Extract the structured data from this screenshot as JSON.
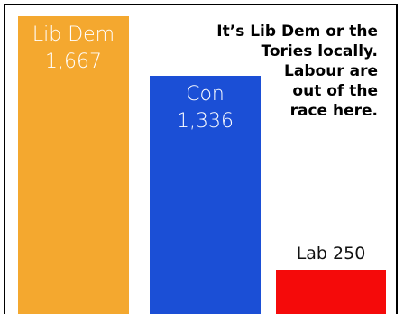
{
  "chart_data": {
    "type": "bar",
    "categories": [
      "Lib Dem",
      "Con",
      "Lab"
    ],
    "values": [
      1667,
      1336,
      250
    ],
    "value_labels": [
      "1,667",
      "1,336",
      "250"
    ],
    "colors": [
      "#F4A82F",
      "#1B4FD6",
      "#F50A0A"
    ],
    "annotation_lines": [
      "It’s Lib Dem or the",
      "Tories locally.",
      "Labour are",
      "out of the",
      "race here."
    ]
  }
}
